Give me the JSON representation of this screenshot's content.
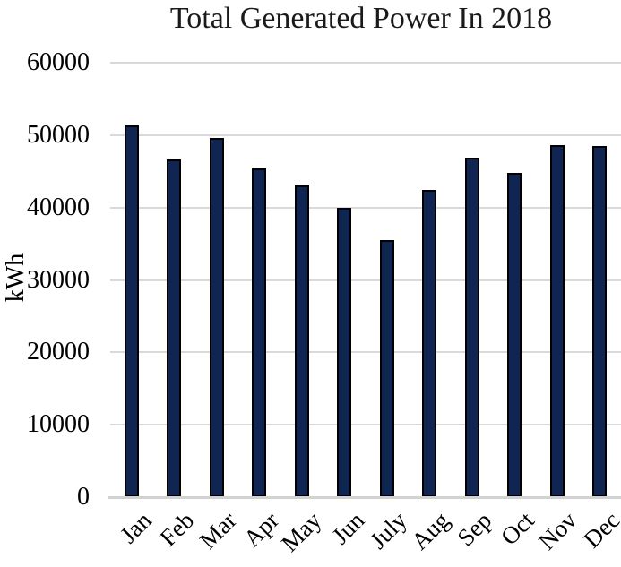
{
  "figure": {
    "background": "#ffffff"
  },
  "chart_data": {
    "type": "bar",
    "title": "Total Generated Power In 2018",
    "xlabel": "",
    "ylabel": "kWh",
    "categories": [
      "Jan",
      "Feb",
      "Mar",
      "Apr",
      "May",
      "Jun",
      "July",
      "Aug",
      "Sep",
      "Oct",
      "Nov",
      "Dec"
    ],
    "values": [
      51400,
      46600,
      49600,
      45400,
      43000,
      40000,
      35500,
      42400,
      46900,
      44800,
      48600,
      48500
    ],
    "ylim": [
      0,
      60000
    ],
    "yticks": [
      0,
      10000,
      20000,
      30000,
      40000,
      50000,
      60000
    ],
    "grid": true,
    "legend": "none",
    "colors": {
      "bar_fill": "#112552",
      "bar_border": "#000000",
      "gridline": "#d9d9d9",
      "axis_line": "#d2d2d2",
      "text": "#000000"
    }
  }
}
